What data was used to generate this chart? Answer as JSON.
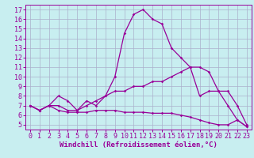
{
  "xlabel": "Windchill (Refroidissement éolien,°C)",
  "bg_color": "#c8eef0",
  "line_color": "#990099",
  "grid_color": "#aab0cc",
  "xlim_min": -0.5,
  "xlim_max": 23.5,
  "ylim_min": 4.5,
  "ylim_max": 17.5,
  "xticks": [
    0,
    1,
    2,
    3,
    4,
    5,
    6,
    7,
    8,
    9,
    10,
    11,
    12,
    13,
    14,
    15,
    16,
    17,
    18,
    19,
    20,
    21,
    22,
    23
  ],
  "yticks": [
    5,
    6,
    7,
    8,
    9,
    10,
    11,
    12,
    13,
    14,
    15,
    16,
    17
  ],
  "line1_x": [
    0,
    1,
    2,
    3,
    4,
    5,
    6,
    7,
    8,
    9,
    10,
    11,
    12,
    13,
    14,
    15,
    16,
    17,
    18,
    19,
    20,
    21,
    22,
    23
  ],
  "line1_y": [
    7.0,
    6.5,
    7.0,
    8.0,
    7.5,
    6.5,
    7.5,
    7.0,
    8.0,
    10.0,
    14.5,
    16.5,
    17.0,
    16.0,
    15.5,
    13.0,
    12.0,
    11.0,
    8.0,
    8.5,
    8.5,
    7.0,
    5.5,
    4.8
  ],
  "line2_x": [
    0,
    1,
    2,
    3,
    4,
    5,
    6,
    7,
    8,
    9,
    10,
    11,
    12,
    13,
    14,
    15,
    16,
    17,
    18,
    19,
    20,
    21,
    22,
    23
  ],
  "line2_y": [
    7.0,
    6.5,
    7.0,
    7.0,
    6.5,
    6.5,
    7.0,
    7.5,
    8.0,
    8.5,
    8.5,
    9.0,
    9.0,
    9.5,
    9.5,
    10.0,
    10.5,
    11.0,
    11.0,
    10.5,
    8.5,
    8.5,
    7.0,
    5.0
  ],
  "line3_x": [
    0,
    1,
    2,
    3,
    4,
    5,
    6,
    7,
    8,
    9,
    10,
    11,
    12,
    13,
    14,
    15,
    16,
    17,
    18,
    19,
    20,
    21,
    22,
    23
  ],
  "line3_y": [
    7.0,
    6.5,
    7.0,
    6.5,
    6.3,
    6.3,
    6.3,
    6.5,
    6.5,
    6.5,
    6.3,
    6.3,
    6.3,
    6.2,
    6.2,
    6.2,
    6.0,
    5.8,
    5.5,
    5.2,
    5.0,
    5.0,
    5.5,
    4.8
  ],
  "marker": "D",
  "markersize": 1.8,
  "linewidth": 0.9,
  "xlabel_fontsize": 6.5,
  "tick_fontsize": 6
}
